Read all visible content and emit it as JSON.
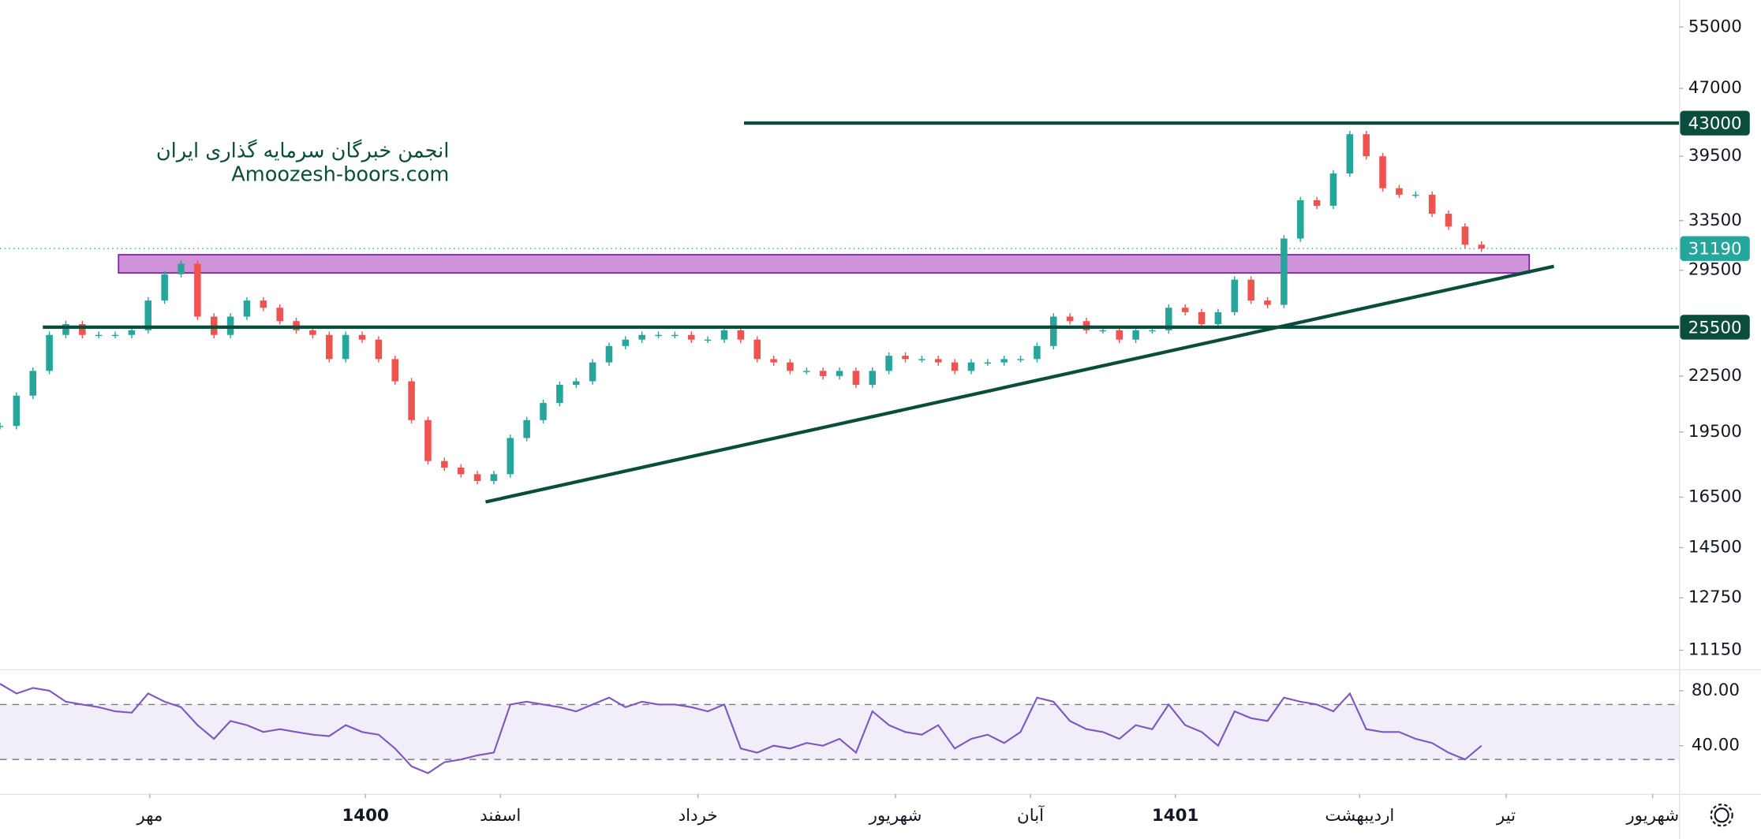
{
  "chart_data": {
    "type": "candlestick",
    "watermark": [
      "انجمن خبرگان سرمایه گذاری ایران",
      "Amoozesh-boors.com"
    ],
    "log_scale": true,
    "ylim": [
      10650,
      58900
    ],
    "yticks": [
      55000,
      47000,
      39500,
      33500,
      29500,
      22500,
      19500,
      16500,
      14500,
      12750,
      11150
    ],
    "xlim": [
      0,
      102
    ],
    "xticks": [
      {
        "value": 9.1,
        "label": "مهر"
      },
      {
        "value": 22.2,
        "label": "1400"
      },
      {
        "value": 30.4,
        "label": "اسفند"
      },
      {
        "value": 42.4,
        "label": "خرداد"
      },
      {
        "value": 54.4,
        "label": "شهریور"
      },
      {
        "value": 62.6,
        "label": "آبان"
      },
      {
        "value": 71.4,
        "label": "1401"
      },
      {
        "value": 82.6,
        "label": "اردیبهشت"
      },
      {
        "value": 91.5,
        "label": "تیر"
      },
      {
        "value": 100.4,
        "label": "شهریور"
      }
    ],
    "up_color": "#26a69a",
    "down_color": "#ef5350",
    "values": [
      19800,
      21400,
      22800,
      25000,
      25700,
      25000,
      25000,
      25000,
      25300,
      27300,
      29200,
      30000,
      26200,
      25000,
      26200,
      27300,
      26800,
      25900,
      25300,
      25000,
      23500,
      25000,
      24700,
      23500,
      22200,
      20100,
      18100,
      17800,
      17500,
      17200,
      17500,
      19200,
      20100,
      21000,
      22000,
      22200,
      23300,
      24300,
      24700,
      25000,
      25000,
      25000,
      24700,
      24700,
      25300,
      24700,
      23500,
      23300,
      22800,
      22800,
      22500,
      22800,
      22000,
      22800,
      23700,
      23500,
      23500,
      23300,
      22800,
      23300,
      23300,
      23500,
      23500,
      24300,
      26200,
      25900,
      25300,
      25300,
      24700,
      25300,
      25300,
      26800,
      26500,
      25700,
      26500,
      28800,
      27300,
      27000,
      32000,
      35300,
      34800,
      37800,
      41800,
      39500,
      36400,
      35800,
      35800,
      34100,
      33000,
      31500,
      31190
    ],
    "last_price": 31190,
    "last_price_color": "#26a69a",
    "levels": [
      {
        "value": 43000,
        "x_start": 45.2
      },
      {
        "value": 25500,
        "x_start": 2.6
      }
    ],
    "level_color": "#0b4d3c",
    "trendline": {
      "x": [
        29.5,
        94.4
      ],
      "y": [
        16300,
        29800
      ]
    },
    "zone": {
      "x": [
        7.2,
        92.9
      ],
      "y": [
        29300,
        30700
      ],
      "color": "#ce93d8"
    },
    "rsi": {
      "color": "#7e57c2",
      "ylim": [
        5,
        94
      ],
      "yticks": [
        {
          "value": 80,
          "label": "80.00"
        },
        {
          "value": 40,
          "label": "40.00"
        }
      ],
      "bands": [
        30,
        70
      ],
      "values": [
        85,
        78,
        82,
        80,
        72,
        70,
        68,
        65,
        64,
        78,
        72,
        68,
        55,
        45,
        58,
        55,
        50,
        52,
        50,
        48,
        47,
        55,
        50,
        48,
        38,
        25,
        20,
        28,
        30,
        33,
        35,
        70,
        72,
        70,
        68,
        65,
        70,
        75,
        68,
        72,
        70,
        70,
        68,
        65,
        70,
        38,
        35,
        40,
        38,
        42,
        40,
        45,
        35,
        65,
        55,
        50,
        48,
        55,
        38,
        45,
        48,
        42,
        50,
        75,
        72,
        58,
        52,
        50,
        45,
        55,
        52,
        70,
        55,
        50,
        40,
        65,
        60,
        58,
        75,
        72,
        70,
        65,
        78,
        52,
        50,
        50,
        45,
        42,
        35,
        30,
        40
      ]
    }
  }
}
